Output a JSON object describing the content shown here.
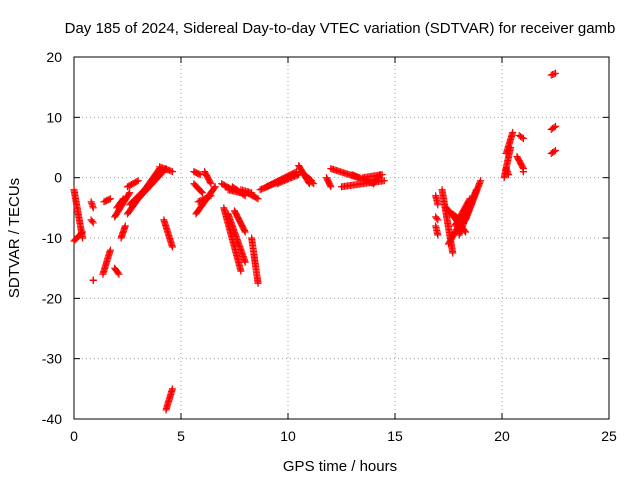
{
  "chart_data": {
    "type": "scatter",
    "title": "Day 185 of 2024, Sidereal Day-to-day VTEC variation (SDTVAR) for receiver gamb",
    "xlabel": "GPS time / hours",
    "ylabel": "SDTVAR / TECUs",
    "xlim": [
      0,
      25
    ],
    "ylim": [
      -40,
      20
    ],
    "x_ticks": [
      0,
      5,
      10,
      15,
      20,
      25
    ],
    "y_ticks": [
      -40,
      -30,
      -20,
      -10,
      0,
      10,
      20
    ],
    "grid": true,
    "marker": "+",
    "color": "#ff0000",
    "segments": [
      {
        "x": [
          0.0,
          0.4
        ],
        "y": [
          -2.0,
          -10.0
        ]
      },
      {
        "x": [
          0.0,
          0.4
        ],
        "y": [
          -10.5,
          -9.0
        ]
      },
      {
        "x": [
          0.8,
          0.9
        ],
        "y": [
          -4.0,
          -5.0
        ]
      },
      {
        "x": [
          0.8,
          0.9
        ],
        "y": [
          -7.0,
          -7.5
        ]
      },
      {
        "x": [
          0.9,
          0.9
        ],
        "y": [
          -17.0,
          -17.0
        ]
      },
      {
        "x": [
          1.4,
          1.7
        ],
        "y": [
          -4.0,
          -3.5
        ]
      },
      {
        "x": [
          1.35,
          1.7
        ],
        "y": [
          -16.0,
          -12.0
        ]
      },
      {
        "x": [
          1.9,
          2.1
        ],
        "y": [
          -15.0,
          -16.0
        ]
      },
      {
        "x": [
          1.9,
          2.6
        ],
        "y": [
          -6.5,
          -2.5
        ]
      },
      {
        "x": [
          2.0,
          2.3
        ],
        "y": [
          -5.0,
          -3.5
        ]
      },
      {
        "x": [
          2.2,
          2.4
        ],
        "y": [
          -10.0,
          -8.0
        ]
      },
      {
        "x": [
          2.5,
          4.0
        ],
        "y": [
          -6.0,
          1.5
        ]
      },
      {
        "x": [
          2.6,
          4.0
        ],
        "y": [
          -4.5,
          0.5
        ]
      },
      {
        "x": [
          2.5,
          3.0
        ],
        "y": [
          -1.5,
          -0.5
        ]
      },
      {
        "x": [
          3.0,
          4.3
        ],
        "y": [
          -3.5,
          1.5
        ]
      },
      {
        "x": [
          4.0,
          4.6
        ],
        "y": [
          1.8,
          1.0
        ]
      },
      {
        "x": [
          4.2,
          4.6
        ],
        "y": [
          -7.0,
          -11.5
        ]
      },
      {
        "x": [
          4.3,
          4.6
        ],
        "y": [
          -38.5,
          -35.0
        ]
      },
      {
        "x": [
          5.6,
          5.9
        ],
        "y": [
          1.0,
          0.5
        ]
      },
      {
        "x": [
          5.6,
          6.0
        ],
        "y": [
          -1.0,
          -2.5
        ]
      },
      {
        "x": [
          5.7,
          6.6
        ],
        "y": [
          -6.0,
          -1.5
        ]
      },
      {
        "x": [
          5.8,
          6.4
        ],
        "y": [
          -4.0,
          -3.0
        ]
      },
      {
        "x": [
          6.1,
          6.4
        ],
        "y": [
          1.0,
          -1.0
        ]
      },
      {
        "x": [
          6.9,
          7.4
        ],
        "y": [
          -1.0,
          -2.0
        ]
      },
      {
        "x": [
          7.2,
          7.8
        ],
        "y": [
          -2.0,
          -2.5
        ]
      },
      {
        "x": [
          7.4,
          8.0
        ],
        "y": [
          -1.5,
          -3.0
        ]
      },
      {
        "x": [
          7.8,
          8.3
        ],
        "y": [
          -2.0,
          -2.5
        ]
      },
      {
        "x": [
          8.1,
          8.6
        ],
        "y": [
          -2.5,
          -3.5
        ]
      },
      {
        "x": [
          7.0,
          7.8
        ],
        "y": [
          -5.0,
          -15.5
        ]
      },
      {
        "x": [
          7.2,
          8.0
        ],
        "y": [
          -6.0,
          -14.0
        ]
      },
      {
        "x": [
          7.5,
          8.0
        ],
        "y": [
          -5.5,
          -9.0
        ]
      },
      {
        "x": [
          8.3,
          8.6
        ],
        "y": [
          -10.0,
          -17.5
        ]
      },
      {
        "x": [
          8.7,
          10.0
        ],
        "y": [
          -2.0,
          0.0
        ]
      },
      {
        "x": [
          9.0,
          10.4
        ],
        "y": [
          -1.5,
          1.0
        ]
      },
      {
        "x": [
          9.5,
          10.5
        ],
        "y": [
          -1.0,
          0.5
        ]
      },
      {
        "x": [
          10.5,
          11.0
        ],
        "y": [
          2.0,
          -1.0
        ]
      },
      {
        "x": [
          10.6,
          11.1
        ],
        "y": [
          1.0,
          -0.5
        ]
      },
      {
        "x": [
          11.0,
          11.2
        ],
        "y": [
          -0.5,
          -1.0
        ]
      },
      {
        "x": [
          11.8,
          12.0
        ],
        "y": [
          0.0,
          -1.5
        ]
      },
      {
        "x": [
          12.0,
          13.3
        ],
        "y": [
          1.5,
          0.0
        ]
      },
      {
        "x": [
          12.5,
          14.5
        ],
        "y": [
          -1.5,
          -0.5
        ]
      },
      {
        "x": [
          13.0,
          14.0
        ],
        "y": [
          0.5,
          -1.0
        ]
      },
      {
        "x": [
          13.5,
          14.4
        ],
        "y": [
          0.0,
          0.5
        ]
      },
      {
        "x": [
          14.0,
          14.3
        ],
        "y": [
          -1.0,
          0.5
        ]
      },
      {
        "x": [
          16.9,
          17.0
        ],
        "y": [
          -3.0,
          -4.5
        ]
      },
      {
        "x": [
          16.9,
          17.0
        ],
        "y": [
          -6.5,
          -7.0
        ]
      },
      {
        "x": [
          16.9,
          17.0
        ],
        "y": [
          -8.0,
          -9.5
        ]
      },
      {
        "x": [
          17.2,
          17.7
        ],
        "y": [
          -2.0,
          -12.5
        ]
      },
      {
        "x": [
          17.4,
          18.3
        ],
        "y": [
          -5.0,
          -9.0
        ]
      },
      {
        "x": [
          17.5,
          18.6
        ],
        "y": [
          -11.0,
          -4.0
        ]
      },
      {
        "x": [
          17.8,
          18.5
        ],
        "y": [
          -8.0,
          -3.5
        ]
      },
      {
        "x": [
          18.0,
          18.8
        ],
        "y": [
          -9.5,
          -2.0
        ]
      },
      {
        "x": [
          17.7,
          18.2
        ],
        "y": [
          -6.0,
          -7.5
        ]
      },
      {
        "x": [
          18.3,
          19.0
        ],
        "y": [
          -7.0,
          -0.5
        ]
      },
      {
        "x": [
          20.1,
          20.4
        ],
        "y": [
          0.0,
          5.0
        ]
      },
      {
        "x": [
          20.2,
          20.5
        ],
        "y": [
          4.0,
          7.5
        ]
      },
      {
        "x": [
          20.2,
          20.3
        ],
        "y": [
          1.5,
          0.5
        ]
      },
      {
        "x": [
          20.7,
          21.0
        ],
        "y": [
          3.5,
          1.5
        ]
      },
      {
        "x": [
          20.8,
          21.0
        ],
        "y": [
          7.0,
          6.5
        ]
      },
      {
        "x": [
          21.0,
          21.0
        ],
        "y": [
          1.0,
          1.0
        ]
      },
      {
        "x": [
          22.3,
          22.5
        ],
        "y": [
          8.0,
          8.5
        ]
      },
      {
        "x": [
          22.3,
          22.5
        ],
        "y": [
          4.0,
          4.5
        ]
      },
      {
        "x": [
          22.3,
          22.5
        ],
        "y": [
          17.0,
          17.3
        ]
      }
    ]
  }
}
